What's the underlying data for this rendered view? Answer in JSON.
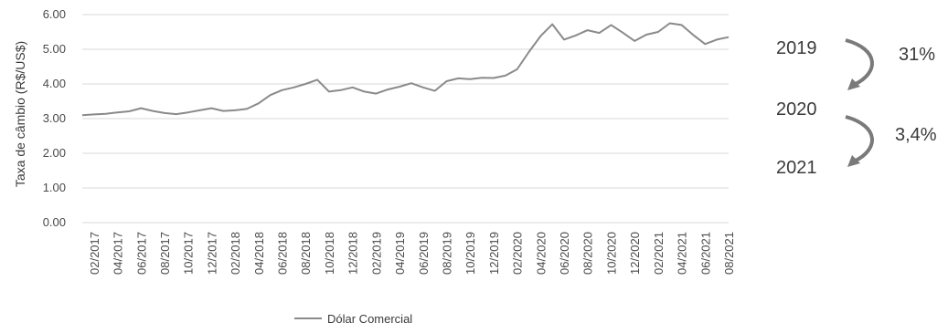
{
  "chart_data": {
    "type": "line",
    "ylabel": "Taxa de câmbio (R$/US$)",
    "ylim": [
      0,
      6
    ],
    "yticks": [
      "0.00",
      "1.00",
      "2.00",
      "3.00",
      "4.00",
      "5.00",
      "6.00"
    ],
    "xtick_labels": [
      "02/2017",
      "04/2017",
      "06/2017",
      "08/2017",
      "10/2017",
      "12/2017",
      "02/2018",
      "04/2018",
      "06/2018",
      "08/2018",
      "10/2018",
      "12/2018",
      "02/2019",
      "04/2019",
      "06/2019",
      "08/2019",
      "10/2019",
      "12/2019",
      "02/2020",
      "04/2020",
      "06/2020",
      "08/2020",
      "10/2020",
      "12/2020",
      "02/2021",
      "04/2021",
      "06/2021",
      "08/2021"
    ],
    "grid": true,
    "legend_position": "bottom",
    "series": [
      {
        "name": "Dólar Comercial",
        "color": "#8a8a8a",
        "x": [
          "01/2017",
          "02/2017",
          "03/2017",
          "04/2017",
          "05/2017",
          "06/2017",
          "07/2017",
          "08/2017",
          "09/2017",
          "10/2017",
          "11/2017",
          "12/2017",
          "01/2018",
          "02/2018",
          "03/2018",
          "04/2018",
          "05/2018",
          "06/2018",
          "07/2018",
          "08/2018",
          "09/2018",
          "10/2018",
          "11/2018",
          "12/2018",
          "01/2019",
          "02/2019",
          "03/2019",
          "04/2019",
          "05/2019",
          "06/2019",
          "07/2019",
          "08/2019",
          "09/2019",
          "10/2019",
          "11/2019",
          "12/2019",
          "01/2020",
          "02/2020",
          "03/2020",
          "04/2020",
          "05/2020",
          "06/2020",
          "07/2020",
          "08/2020",
          "09/2020",
          "10/2020",
          "11/2020",
          "12/2020",
          "01/2021",
          "02/2021",
          "03/2021",
          "04/2021",
          "05/2021",
          "06/2021",
          "07/2021",
          "08/2021"
        ],
        "values": [
          3.1,
          3.12,
          3.14,
          3.18,
          3.21,
          3.3,
          3.22,
          3.16,
          3.13,
          3.18,
          3.24,
          3.3,
          3.22,
          3.24,
          3.28,
          3.44,
          3.68,
          3.82,
          3.9,
          4.0,
          4.12,
          3.78,
          3.82,
          3.9,
          3.78,
          3.72,
          3.84,
          3.92,
          4.02,
          3.9,
          3.8,
          4.08,
          4.16,
          4.14,
          4.18,
          4.17,
          4.24,
          4.42,
          4.92,
          5.38,
          5.72,
          5.28,
          5.4,
          5.55,
          5.47,
          5.7,
          5.48,
          5.24,
          5.42,
          5.5,
          5.75,
          5.7,
          5.41,
          5.15,
          5.28,
          5.35
        ]
      }
    ]
  },
  "annotations": {
    "year_2019": "2019",
    "year_2020": "2020",
    "year_2021": "2021",
    "pct_2019_2020": "31%",
    "pct_2020_2021": "3,4%",
    "arrow_color": "#7a7a7a"
  }
}
